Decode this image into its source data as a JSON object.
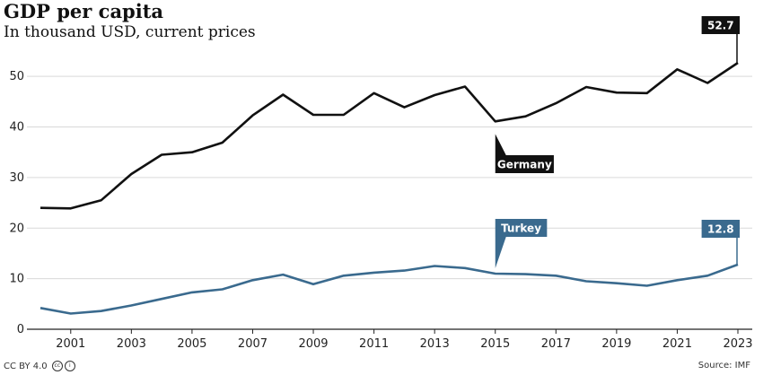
{
  "title": "GDP per capita",
  "subtitle": "In thousand USD, current prices",
  "footer": {
    "license": "CC BY 4.0",
    "source": "Source: IMF"
  },
  "colors": {
    "germany": "#111111",
    "turkey": "#3a6a8e",
    "grid": "#d9d9d9"
  },
  "chart_data": {
    "type": "line",
    "title": "GDP per capita",
    "subtitle": "In thousand USD, current prices",
    "x": [
      2000,
      2001,
      2002,
      2003,
      2004,
      2005,
      2006,
      2007,
      2008,
      2009,
      2010,
      2011,
      2012,
      2013,
      2014,
      2015,
      2016,
      2017,
      2018,
      2019,
      2020,
      2021,
      2022,
      2023
    ],
    "xticks": [
      "2001",
      "2003",
      "2005",
      "2007",
      "2009",
      "2011",
      "2013",
      "2015",
      "2017",
      "2019",
      "2021",
      "2023"
    ],
    "yticks": [
      "0",
      "10",
      "20",
      "30",
      "40",
      "50"
    ],
    "ylim": [
      0,
      55
    ],
    "grid": true,
    "series": [
      {
        "name": "Germany",
        "color": "#111111",
        "values": [
          24.0,
          23.9,
          25.5,
          30.7,
          34.5,
          35.0,
          36.9,
          42.3,
          46.4,
          42.4,
          42.4,
          46.7,
          43.9,
          46.3,
          48.0,
          41.1,
          42.1,
          44.7,
          47.9,
          46.8,
          46.7,
          51.4,
          48.7,
          52.7
        ]
      },
      {
        "name": "Turkey",
        "color": "#3a6a8e",
        "values": [
          4.2,
          3.1,
          3.6,
          4.7,
          6.0,
          7.3,
          7.9,
          9.7,
          10.8,
          8.9,
          10.6,
          11.2,
          11.6,
          12.5,
          12.1,
          11.0,
          10.9,
          10.6,
          9.5,
          9.1,
          8.6,
          9.7,
          10.6,
          12.8
        ]
      }
    ],
    "annotations": [
      {
        "text": "52.7",
        "series": "Germany"
      },
      {
        "text": "12.8",
        "series": "Turkey"
      }
    ]
  }
}
